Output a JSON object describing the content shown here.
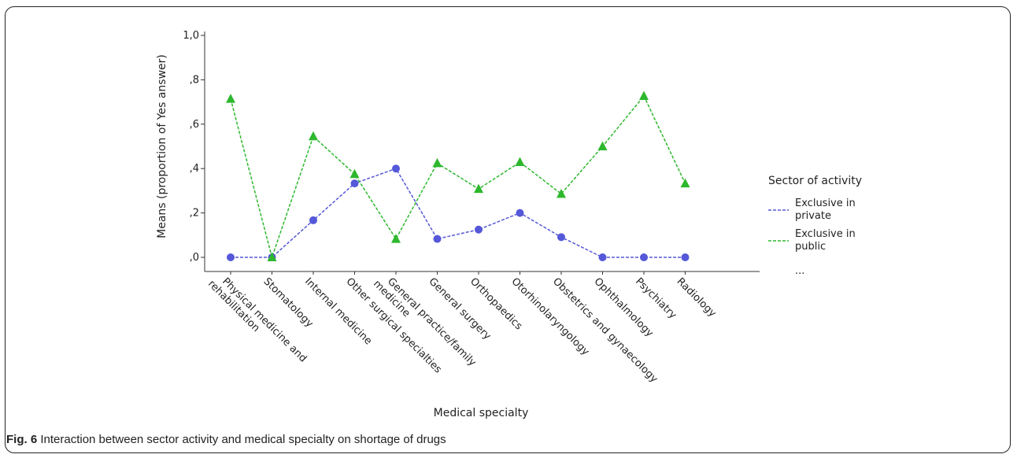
{
  "figure": {
    "caption_label": "Fig. 6",
    "caption_text": "Interaction between sector activity and medical specialty on shortage of drugs"
  },
  "chart_data": {
    "type": "line",
    "title": "",
    "xlabel": "Medical specialty",
    "ylabel": "Means (proportion of Yes answer)",
    "ylim": [
      0,
      1.0
    ],
    "yticks": [
      "1,0",
      ",8",
      ",6",
      ",4",
      ",2",
      ",0"
    ],
    "categories": [
      [
        "Physical medicine and",
        "rehabilitation"
      ],
      [
        "Stomatology"
      ],
      [
        "Internal medicine"
      ],
      [
        "Other surgical specialties"
      ],
      [
        "General practice/family",
        "medicine"
      ],
      [
        "General surgery"
      ],
      [
        "Orthopaedics"
      ],
      [
        "Otorhinolaryngology"
      ],
      [
        "Obstetrics and gynaecology"
      ],
      [
        "Ophthalmology"
      ],
      [
        "Psychiatry"
      ],
      [
        "Radiology"
      ]
    ],
    "series": [
      {
        "name": "Exclusive in private",
        "legend_lines": [
          "Exclusive in",
          "private"
        ],
        "color": "#5558d8",
        "marker": "circle",
        "values": [
          0.0,
          0.0,
          0.167,
          0.333,
          0.4,
          0.083,
          0.125,
          0.2,
          0.091,
          0.0,
          0.0,
          0.0
        ]
      },
      {
        "name": "Exclusive in public",
        "legend_lines": [
          "Exclusive in",
          "public"
        ],
        "color": "#2db82d",
        "marker": "triangle",
        "values": [
          0.714,
          0.0,
          0.545,
          0.375,
          0.083,
          0.424,
          0.308,
          0.429,
          0.286,
          0.5,
          0.727,
          0.333
        ]
      }
    ],
    "legend": {
      "title": "Sector of activity",
      "placement": "right",
      "more": "..."
    },
    "grid": false
  }
}
